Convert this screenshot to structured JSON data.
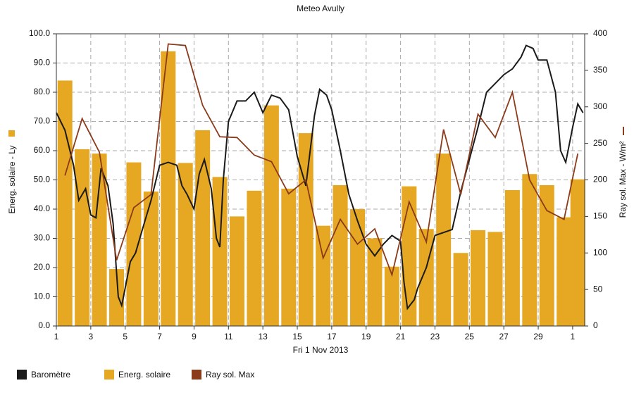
{
  "chart_data": {
    "type": "combo",
    "title": "Meteo  Avully",
    "xlabel": "Fri 1 Nov 2013",
    "ylabel": "Energ. solaire - Ly",
    "y2label": "Ray sol. Max - W/m²",
    "xlim": [
      1,
      31.7
    ],
    "xticks": [
      1,
      3,
      5,
      7,
      9,
      11,
      13,
      15,
      17,
      19,
      21,
      23,
      25,
      27,
      29,
      {
        "value": 31,
        "label": "1"
      }
    ],
    "ylim": [
      0,
      100
    ],
    "yticks": [
      {
        "value": 0,
        "label": "0.0"
      },
      {
        "value": 10,
        "label": "10.0"
      },
      {
        "value": 20,
        "label": "20.0"
      },
      {
        "value": 30,
        "label": "30.0"
      },
      {
        "value": 40,
        "label": "40.0"
      },
      {
        "value": 50,
        "label": "50.0"
      },
      {
        "value": 60,
        "label": "60.0"
      },
      {
        "value": 70,
        "label": "70.0"
      },
      {
        "value": 80,
        "label": "80.0"
      },
      {
        "value": 90,
        "label": "90.0"
      },
      {
        "value": 100,
        "label": "100.0"
      }
    ],
    "y2lim": [
      0,
      400
    ],
    "y2ticks": [
      0,
      50,
      100,
      150,
      200,
      250,
      300,
      350,
      400
    ],
    "grid": true,
    "legend": "bottom",
    "series": [
      {
        "name": "Energ. solaire",
        "type": "bar",
        "color": "#e6a822",
        "x": [
          1.5,
          2.5,
          3.5,
          4.5,
          5.5,
          6.5,
          7.5,
          8.5,
          9.5,
          10.5,
          11.5,
          12.5,
          13.5,
          14.5,
          15.5,
          16.5,
          17.5,
          18.5,
          19.5,
          20.5,
          21.5,
          22.5,
          23.5,
          24.5,
          25.5,
          26.5,
          27.5,
          28.5,
          29.5,
          30.5,
          31.3
        ],
        "values": [
          84,
          60.5,
          59,
          19.5,
          56,
          46,
          94,
          55.8,
          67,
          51,
          37.5,
          46.3,
          75.5,
          47,
          66,
          34.3,
          48.2,
          40,
          30,
          20.3,
          47.8,
          33.2,
          59,
          25,
          32.8,
          32.2,
          46.5,
          52,
          48.2,
          37.2,
          50.2
        ]
      },
      {
        "name": "Baromètre",
        "type": "line",
        "color": "#1a1a1a",
        "x": [
          1,
          1.5,
          2,
          2.3,
          2.7,
          3,
          3.3,
          3.6,
          4,
          4.3,
          4.6,
          4.8,
          5,
          5.3,
          5.6,
          6,
          6.5,
          7,
          7.5,
          8,
          8.3,
          8.6,
          9,
          9.3,
          9.6,
          10,
          10.3,
          10.5,
          10.7,
          11,
          11.5,
          12,
          12.5,
          13,
          13.5,
          14,
          14.5,
          15,
          15.5,
          16,
          16.3,
          16.7,
          17,
          17.5,
          18,
          18.5,
          19,
          19.5,
          20,
          20.5,
          21,
          21.2,
          21.4,
          21.8,
          22,
          22.5,
          23,
          23.5,
          24,
          24.5,
          25,
          25.5,
          26,
          26.5,
          27,
          27.5,
          28,
          28.3,
          28.7,
          29,
          29.5,
          30,
          30.3,
          30.6,
          31,
          31.3,
          31.6
        ],
        "values": [
          73,
          67,
          55,
          43,
          47,
          38,
          37,
          54,
          48,
          35,
          10,
          7,
          13,
          22,
          25,
          33,
          43,
          55,
          56,
          55,
          48,
          45,
          40,
          52,
          57,
          47,
          30,
          27,
          50,
          70,
          77,
          77,
          80,
          73,
          79,
          78,
          74,
          58,
          48,
          72,
          81,
          79,
          74,
          60,
          45,
          36,
          28,
          24,
          28,
          31,
          29,
          15,
          6,
          9,
          13,
          20,
          31,
          32,
          33,
          46,
          57,
          68,
          80,
          83,
          86,
          88,
          92,
          96,
          95,
          91,
          91,
          80,
          60,
          56,
          68,
          76,
          73
        ]
      },
      {
        "name": "Ray sol. Max",
        "type": "line",
        "axis": "y2",
        "color": "#8b3a1a",
        "x": [
          1.5,
          2.5,
          3.5,
          4.5,
          5.5,
          6.5,
          7.5,
          8.5,
          9.5,
          10.5,
          11.5,
          12.5,
          13.5,
          14.5,
          15.5,
          16.5,
          17.5,
          18.5,
          19.5,
          20.5,
          21.5,
          22.5,
          23.5,
          24.5,
          25.5,
          26.5,
          27.5,
          28.5,
          29.5,
          30.5,
          31.3
        ],
        "values": [
          206,
          284,
          238,
          90,
          162,
          180,
          386,
          384,
          302,
          259,
          258,
          234,
          225,
          181,
          200,
          93,
          146,
          112,
          133,
          70,
          170,
          115,
          269,
          180,
          290,
          258,
          320,
          200,
          158,
          146,
          236
        ]
      }
    ]
  }
}
